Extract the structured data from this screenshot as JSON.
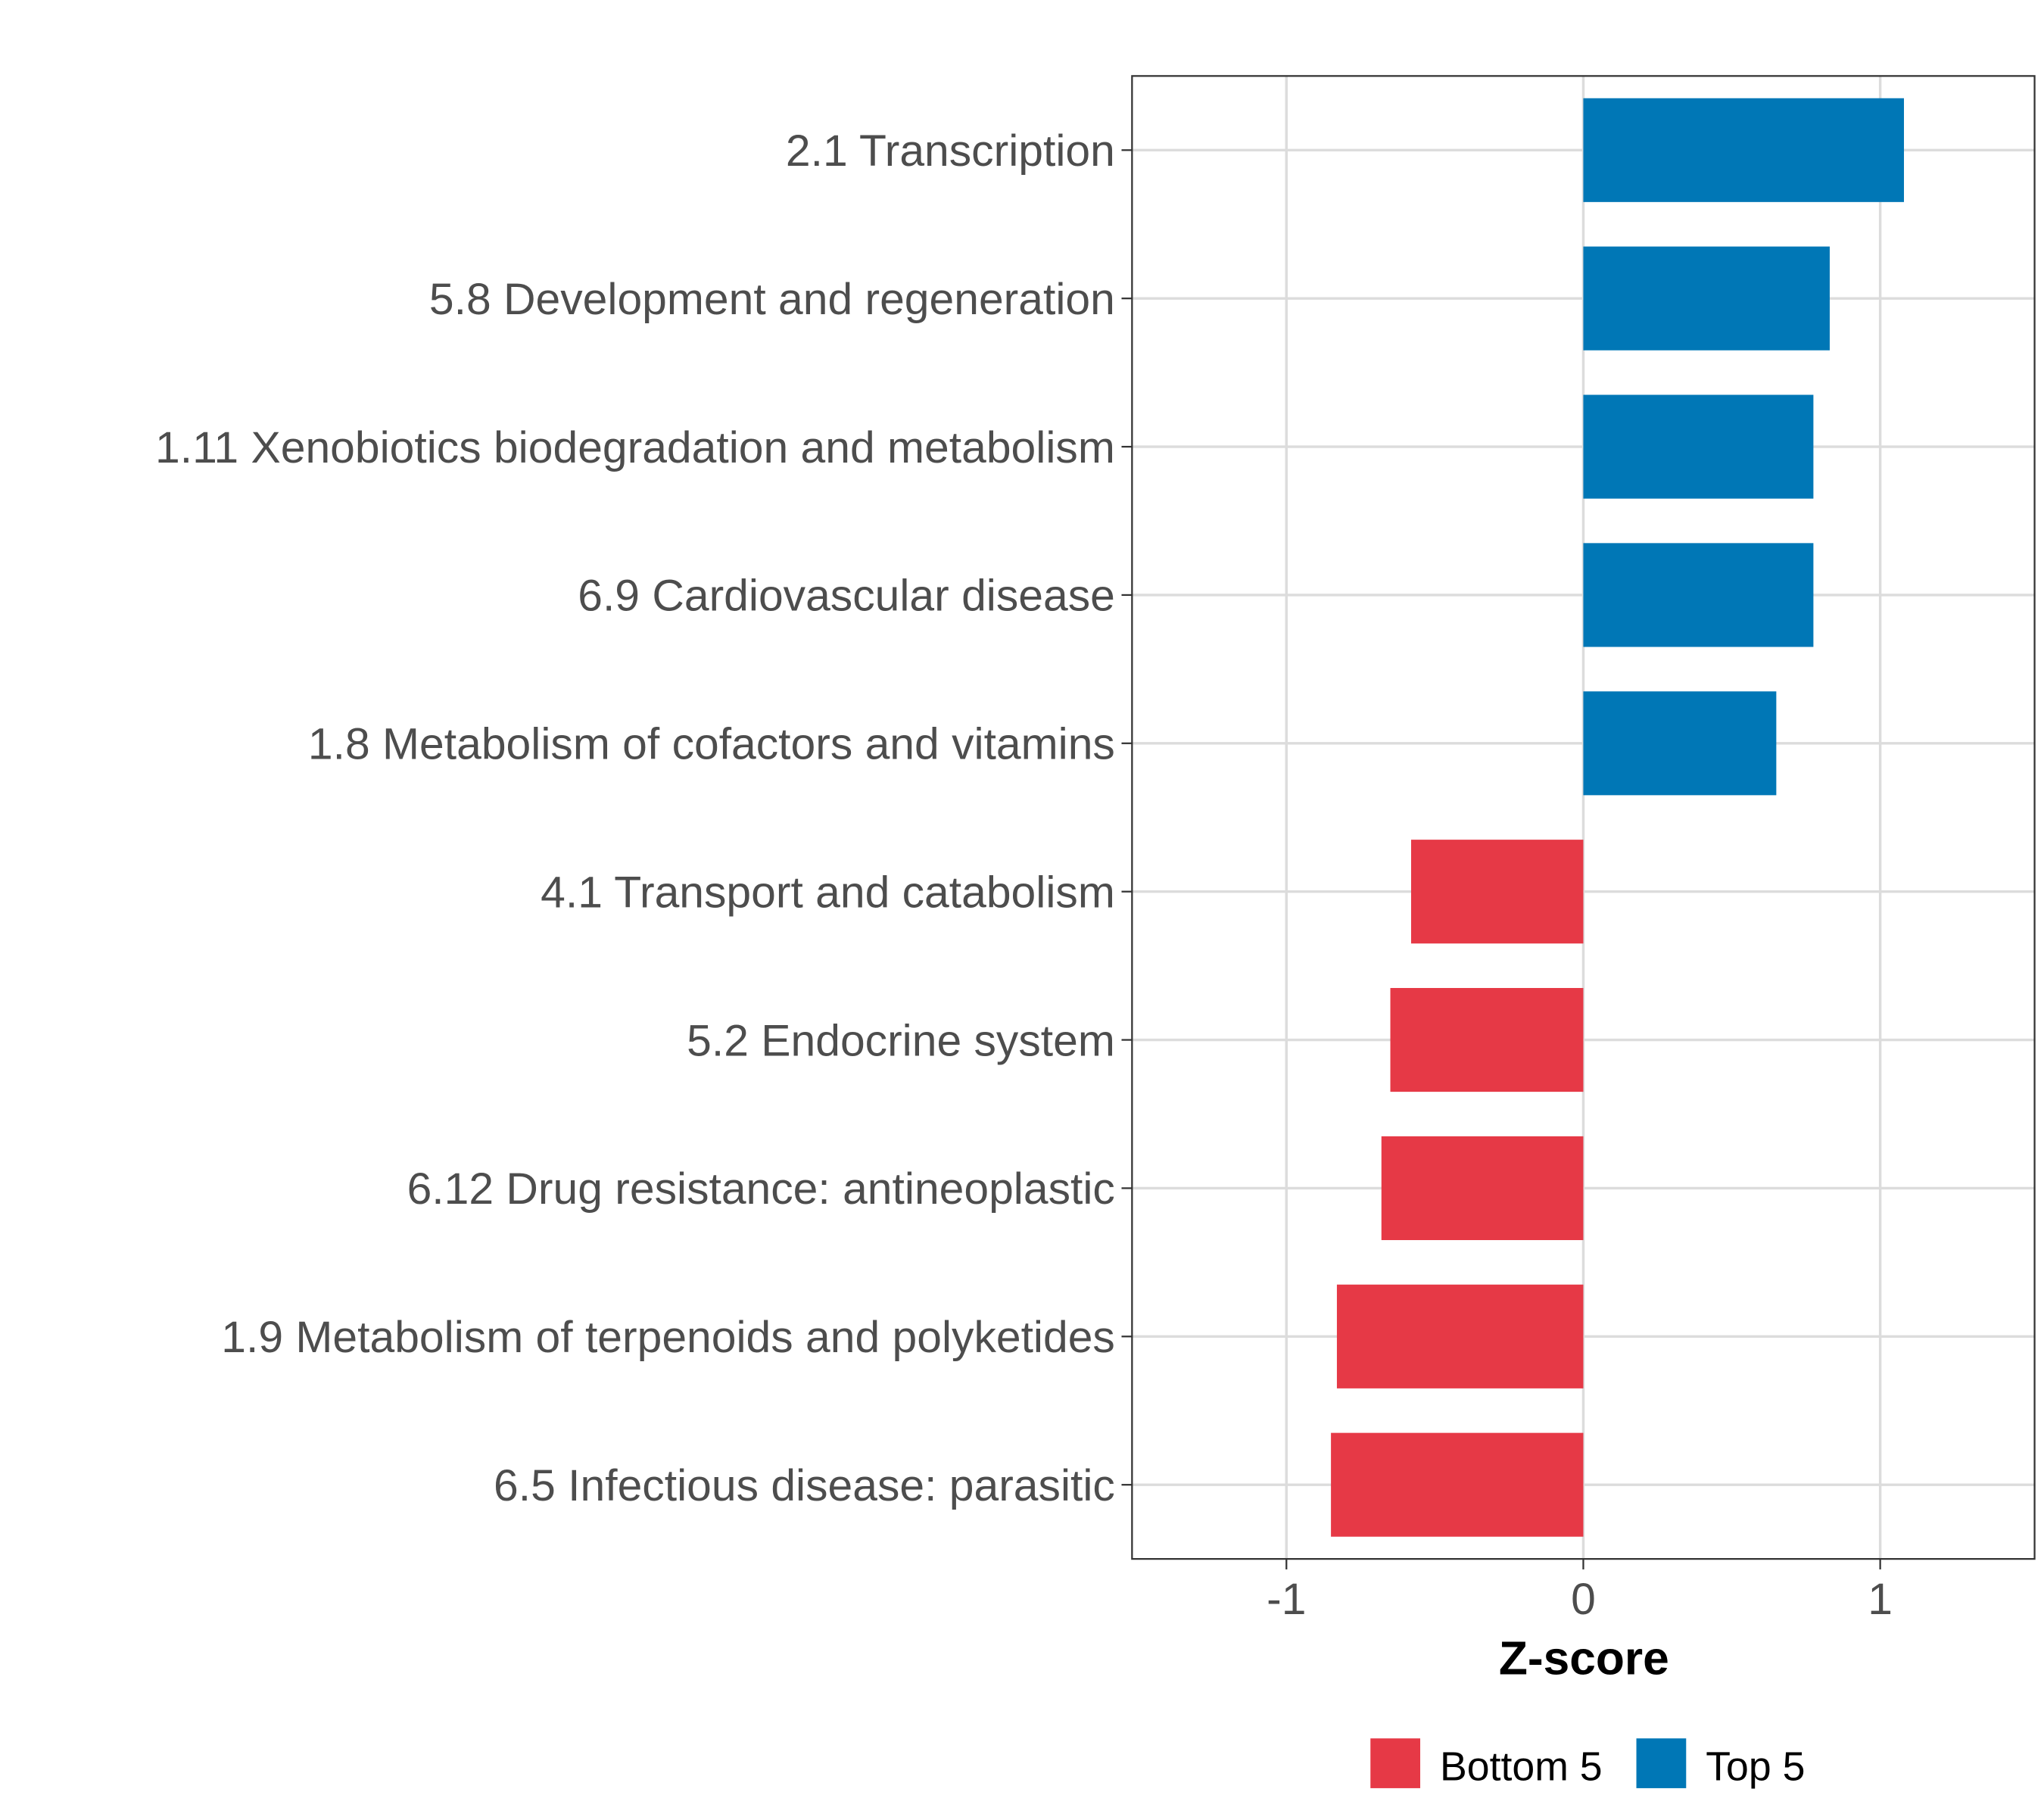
{
  "chart_data": {
    "type": "bar",
    "orientation": "horizontal",
    "title": "",
    "xlabel": "Z-score",
    "ylabel": "",
    "xlim": [
      -1.52,
      1.52
    ],
    "xticks": [
      -1,
      0,
      1
    ],
    "xtick_labels": [
      "-1",
      "0",
      "1"
    ],
    "grid": true,
    "categories": [
      "2.1 Transcription",
      "5.8 Development and regeneration",
      "1.11 Xenobiotics biodegradation and metabolism",
      "6.9 Cardiovascular disease",
      "1.8 Metabolism of cofactors and vitamins",
      "4.1 Transport and catabolism",
      "5.2 Endocrine system",
      "6.12 Drug resistance: antineoplastic",
      "1.9 Metabolism of terpenoids and polyketides",
      "6.5 Infectious disease: parasitic"
    ],
    "values": [
      1.08,
      0.83,
      0.775,
      0.775,
      0.65,
      -0.58,
      -0.65,
      -0.68,
      -0.83,
      -0.85
    ],
    "groups": [
      "Top 5",
      "Top 5",
      "Top 5",
      "Top 5",
      "Top 5",
      "Bottom 5",
      "Bottom 5",
      "Bottom 5",
      "Bottom 5",
      "Bottom 5"
    ],
    "legend": {
      "placement": "bottom",
      "entries": [
        {
          "label": "Bottom 5",
          "color": "#E63946"
        },
        {
          "label": "Top 5",
          "color": "#0077B6"
        }
      ]
    }
  }
}
